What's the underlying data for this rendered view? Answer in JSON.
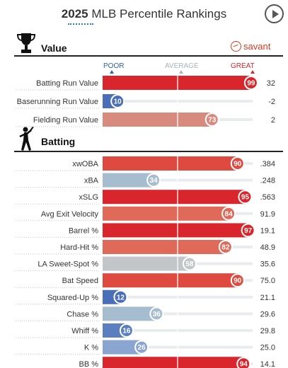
{
  "header": {
    "year": "2025",
    "title": "MLB Percentile Rankings"
  },
  "value_section": {
    "title": "Value",
    "brand": "savant"
  },
  "scale": {
    "poor": "POOR",
    "average": "AVERAGE",
    "great": "GREAT"
  },
  "batting_section": {
    "title": "Batting"
  },
  "chart_data": [
    {
      "type": "bar",
      "title": "Value",
      "xlim": [
        0,
        100
      ],
      "categories": [
        "Batting Run Value",
        "Baserunning Run Value",
        "Fielding Run Value"
      ],
      "percentiles": [
        99,
        10,
        73
      ],
      "stat_values": [
        "32",
        "-2",
        "2"
      ],
      "colors": [
        "#d8262c",
        "#4a6fb8",
        "#d98a7e"
      ]
    },
    {
      "type": "bar",
      "title": "Batting",
      "xlim": [
        0,
        100
      ],
      "categories": [
        "xwOBA",
        "xBA",
        "xSLG",
        "Avg Exit Velocity",
        "Barrel %",
        "Hard-Hit %",
        "LA Sweet-Spot %",
        "Bat Speed",
        "Squared-Up %",
        "Chase %",
        "Whiff %",
        "K %",
        "BB %"
      ],
      "percentiles": [
        90,
        34,
        95,
        84,
        97,
        82,
        58,
        90,
        12,
        36,
        16,
        26,
        94
      ],
      "stat_values": [
        ".384",
        ".248",
        ".563",
        "91.9",
        "19.1",
        "48.9",
        "35.6",
        "75.0",
        "21.1",
        "29.6",
        "29.8",
        "25.0",
        "14.1"
      ],
      "colors": [
        "#df4a40",
        "#a6bccf",
        "#d8262c",
        "#e06a5a",
        "#d8262c",
        "#e06a5a",
        "#c2c6c9",
        "#df4a40",
        "#4a6fb8",
        "#a6bccf",
        "#5a7fc0",
        "#8aa5d0",
        "#d8262c"
      ]
    }
  ]
}
